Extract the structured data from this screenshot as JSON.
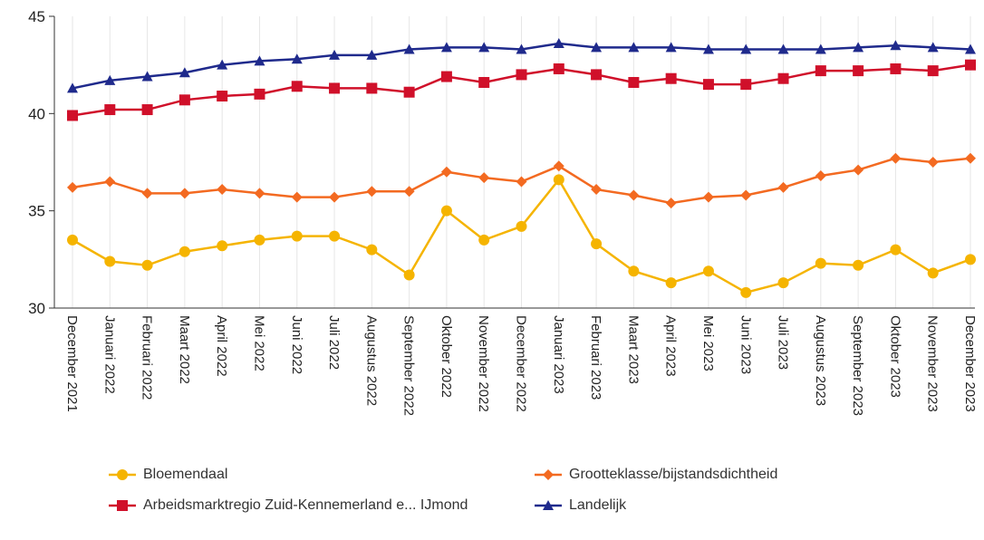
{
  "chart_data": {
    "type": "line",
    "categories": [
      "December 2021",
      "Januari 2022",
      "Februari 2022",
      "Maart 2022",
      "April 2022",
      "Mei 2022",
      "Juni 2022",
      "Juli 2022",
      "Augustus 2022",
      "September 2022",
      "Oktober 2022",
      "November 2022",
      "December 2022",
      "Januari 2023",
      "Februari 2023",
      "Maart 2023",
      "April 2023",
      "Mei 2023",
      "Juni 2023",
      "Juli 2023",
      "Augustus 2023",
      "September 2023",
      "Oktober 2023",
      "November 2023",
      "December 2023"
    ],
    "series": [
      {
        "name": "Bloemendaal",
        "color": "#f5b400",
        "marker": "circle",
        "values": [
          33.5,
          32.4,
          32.2,
          32.9,
          33.2,
          33.5,
          33.7,
          33.7,
          33.0,
          31.7,
          35.0,
          33.5,
          34.2,
          36.6,
          33.3,
          31.9,
          31.3,
          31.9,
          30.8,
          31.3,
          32.3,
          32.2,
          33.0,
          31.8,
          32.5
        ]
      },
      {
        "name": "Grootteklasse/bijstandsdichtheid",
        "color": "#f36a21",
        "marker": "diamond",
        "values": [
          36.2,
          36.5,
          35.9,
          35.9,
          36.1,
          35.9,
          35.7,
          35.7,
          36.0,
          36.0,
          37.0,
          36.7,
          36.5,
          37.3,
          36.1,
          35.8,
          35.4,
          35.7,
          35.8,
          36.2,
          36.8,
          37.1,
          37.7,
          37.5,
          37.7
        ]
      },
      {
        "name": "Arbeidsmarktregio Zuid-Kennemerland e... IJmond",
        "color": "#d0102a",
        "marker": "square",
        "values": [
          39.9,
          40.2,
          40.2,
          40.7,
          40.9,
          41.0,
          41.4,
          41.3,
          41.3,
          41.1,
          41.9,
          41.6,
          42.0,
          42.3,
          42.0,
          41.6,
          41.8,
          41.5,
          41.5,
          41.8,
          42.2,
          42.2,
          42.3,
          42.2,
          42.5
        ]
      },
      {
        "name": "Landelijk",
        "color": "#1f2a8c",
        "marker": "triangle",
        "values": [
          41.3,
          41.7,
          41.9,
          42.1,
          42.5,
          42.7,
          42.8,
          43.0,
          43.0,
          43.3,
          43.4,
          43.4,
          43.3,
          43.6,
          43.4,
          43.4,
          43.4,
          43.3,
          43.3,
          43.3,
          43.3,
          43.4,
          43.5,
          43.4,
          43.3
        ]
      }
    ],
    "ylim": [
      30,
      45
    ],
    "yticks": [
      30,
      35,
      40,
      45
    ],
    "xgrid": true
  }
}
